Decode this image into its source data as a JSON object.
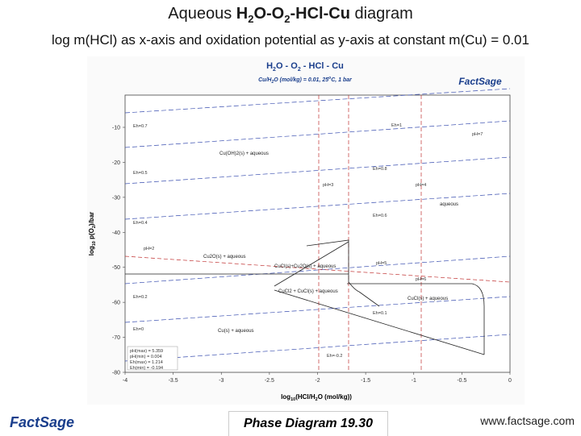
{
  "header": {
    "title": {
      "pre": "Aqueous",
      "formula": [
        "H",
        "2",
        "O-O",
        "2",
        "-HCl-Cu"
      ],
      "post": "diagram"
    },
    "subtitle": "log m(HCl) as x-axis and oxidation potential as y-axis at constant m(Cu) = 0.01"
  },
  "diagram": {
    "title": [
      "H",
      "2",
      "O - O",
      "2",
      " - HCl - Cu"
    ],
    "conditions": [
      "Cu/H",
      "2",
      "O (mol/kg) = 0.01, 25",
      "o",
      "C, 1 bar"
    ],
    "logo": "FactSage",
    "x_label": [
      "log",
      "10",
      "(HCl/H",
      "2",
      "O (mol/kg))"
    ],
    "y_label": [
      "log",
      "10",
      " p(O",
      "2",
      ")/bar"
    ],
    "xticks": [
      -4,
      -3.5,
      -3,
      -2.5,
      -2,
      -1.5,
      -1,
      -0.5,
      0
    ],
    "yticks": [
      -10,
      -20,
      -30,
      -40,
      -50,
      -60,
      -70,
      -80
    ],
    "regions": [
      "Cu(OH)2(s) + aqueous",
      "aqueous",
      "Cu2O(s) + aqueous",
      "CuCl(s)+Cu2O(s) + aqueous",
      "CuCl2 + CuCl(s) + aqueous",
      "CuCl(s) + aqueous",
      "Cu(s) + aqueous"
    ],
    "line_labels": [
      "Eh=0.7",
      "Eh=1",
      "pH=7",
      "Eh=0.5",
      "Eh=0.8",
      "pH=3",
      "pH=4",
      "Eh=0.6",
      "Eh=0.4",
      "pH=2",
      "pH=5",
      "pH=6",
      "Eh=0.2",
      "Eh=0.1",
      "Eh=0",
      "Eh=-0.2"
    ],
    "legend": [
      "pH(max) = 5.359",
      "pH(min) = 0.004",
      "Eh(max) = 1.214",
      "Eh(min) = -0.194"
    ]
  },
  "footer": {
    "logo": "FactSage",
    "center": "Phase Diagram 19.30",
    "url": "www.factsage.com"
  }
}
